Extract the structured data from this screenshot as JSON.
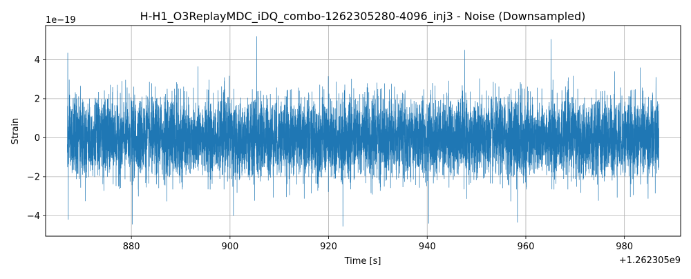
{
  "chart_data": {
    "type": "line",
    "title": "H-H1_O3ReplayMDC_iDQ_combo-1262305280-4096_inj3 - Noise (Downsampled)",
    "xlabel": "Time [s]",
    "ylabel": "Strain",
    "x_offset_label": "+1.262305e9",
    "y_scale_label": "1e−19",
    "xlim": [
      862.6,
      991.4
    ],
    "ylim": [
      -5.05,
      5.75
    ],
    "x_ticks": [
      880,
      900,
      920,
      940,
      960,
      980
    ],
    "x_tick_labels": [
      "880",
      "900",
      "920",
      "940",
      "960",
      "980"
    ],
    "y_ticks": [
      -4,
      -2,
      0,
      2,
      4
    ],
    "y_tick_labels": [
      "−4",
      "−2",
      "0",
      "2",
      "4"
    ],
    "grid": true,
    "x_range": [
      867.0,
      987.0
    ],
    "series": [
      {
        "color": "#1f77b4",
        "line_width": 1,
        "noise_sigma": 1.0,
        "peaks": [
          {
            "x": 867.1,
            "y": 4.35
          },
          {
            "x": 867.2,
            "y": -4.2
          },
          {
            "x": 880.2,
            "y": -4.45
          },
          {
            "x": 905.4,
            "y": 5.2
          },
          {
            "x": 922.9,
            "y": -4.55
          },
          {
            "x": 940.3,
            "y": -4.4
          },
          {
            "x": 947.6,
            "y": 4.5
          },
          {
            "x": 958.3,
            "y": -4.35
          },
          {
            "x": 965.1,
            "y": 5.05
          },
          {
            "x": 978.0,
            "y": 3.4
          },
          {
            "x": 983.2,
            "y": 3.6
          },
          {
            "x": 986.4,
            "y": 3.1
          },
          {
            "x": 900.7,
            "y": -4.0
          },
          {
            "x": 893.5,
            "y": 3.65
          }
        ]
      }
    ]
  }
}
